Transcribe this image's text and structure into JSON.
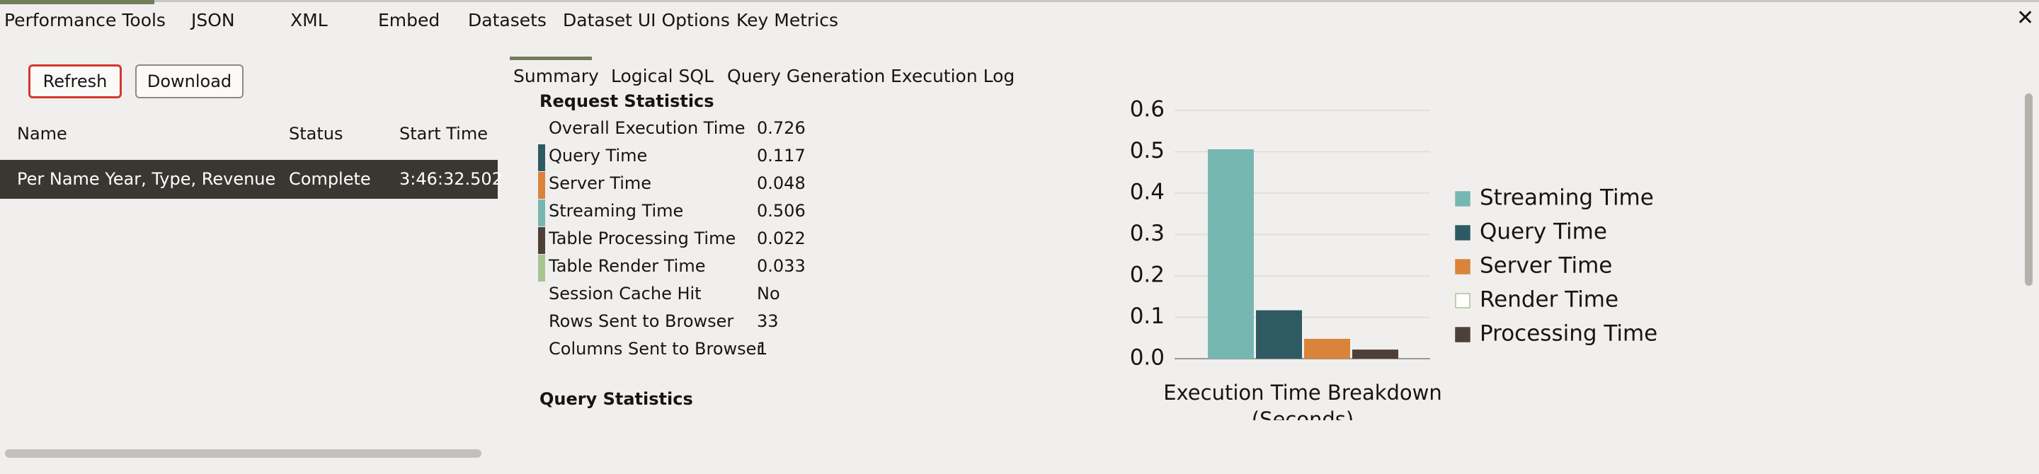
{
  "tabs": [
    "Performance Tools",
    "JSON",
    "XML",
    "Embed",
    "Datasets",
    "Dataset UI Options",
    "Key Metrics"
  ],
  "buttons": {
    "refresh": "Refresh",
    "download": "Download"
  },
  "table": {
    "columns": [
      "Name",
      "Status",
      "Start Time"
    ],
    "rows": [
      [
        "Per Name Year, Type, Revenue",
        "Complete",
        "3:46:32.502"
      ]
    ]
  },
  "subtabs": [
    "Summary",
    "Logical SQL",
    "Query Generation",
    "Execution Log"
  ],
  "request_statistics": {
    "title": "Request Statistics",
    "rows": [
      {
        "label": "Overall Execution Time",
        "value": "0.726"
      },
      {
        "label": "Query Time",
        "value": "0.117",
        "color": "#2e5a63"
      },
      {
        "label": "Server Time",
        "value": "0.048",
        "color": "#d9843a"
      },
      {
        "label": "Streaming Time",
        "value": "0.506",
        "color": "#76b7b2"
      },
      {
        "label": "Table Processing Time",
        "value": "0.022",
        "color": "#4d4038"
      },
      {
        "label": "Table Render Time",
        "value": "0.033",
        "color": "#a8c58f"
      },
      {
        "label": "Session Cache Hit",
        "value": "No"
      },
      {
        "label": "Rows Sent to Browser",
        "value": "33"
      },
      {
        "label": "Columns Sent to Browser",
        "value": "1"
      }
    ]
  },
  "query_statistics": {
    "title": "Query Statistics"
  },
  "chart_data": {
    "type": "bar",
    "x_label": "Execution Time Breakdown (Seconds)",
    "categories": [
      null
    ],
    "series": [
      {
        "name": "Streaming Time",
        "color": "#76b7b2",
        "values": [
          0.506
        ]
      },
      {
        "name": "Query Time",
        "color": "#2e5a63",
        "values": [
          0.117
        ]
      },
      {
        "name": "Server Time",
        "color": "#d9843a",
        "values": [
          0.048
        ]
      },
      {
        "name": "Render Time",
        "color": "#ffffff",
        "values": [
          null
        ]
      },
      {
        "name": "Processing Time",
        "color": "#4d4038",
        "values": [
          0.022
        ]
      }
    ],
    "ylim": [
      0,
      0.6
    ],
    "yticks": [
      {
        "value": 0,
        "label": "0.0"
      },
      0.1,
      0.2,
      0.3,
      0.4,
      0.5,
      0.6
    ],
    "grid": true,
    "legend": "right"
  }
}
